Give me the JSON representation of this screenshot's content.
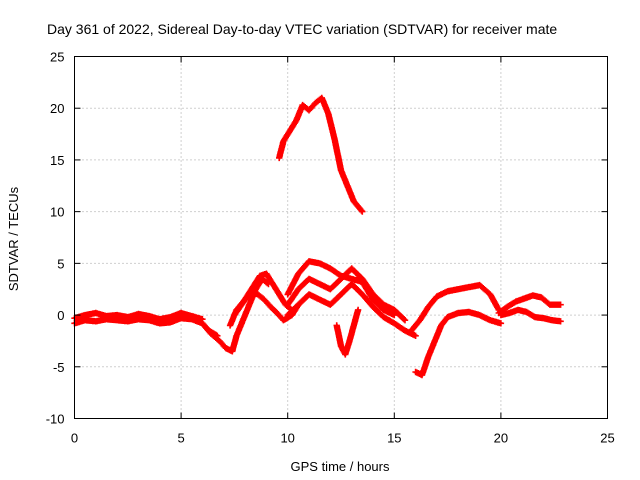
{
  "chart_data": {
    "type": "scatter",
    "title": "Day 361 of 2022, Sidereal Day-to-day VTEC variation (SDTVAR) for receiver mate",
    "xlabel": "GPS time / hours",
    "ylabel": "SDTVAR / TECUs",
    "xlim": [
      0,
      25
    ],
    "ylim": [
      -10,
      25
    ],
    "xticks": [
      0,
      5,
      10,
      15,
      20,
      25
    ],
    "yticks": [
      -10,
      -5,
      0,
      5,
      10,
      15,
      20,
      25
    ],
    "grid": true,
    "marker": "plus",
    "series": [
      {
        "name": "baseline-band",
        "color": "#ff0000",
        "x": [
          0.0,
          0.5,
          1.0,
          1.5,
          2.0,
          2.5,
          3.0,
          3.5,
          4.0,
          4.5,
          5.0,
          5.5,
          6.0,
          6.3,
          6.7
        ],
        "y": [
          -0.8,
          -0.5,
          -0.6,
          -0.4,
          -0.5,
          -0.6,
          -0.4,
          -0.5,
          -0.8,
          -0.7,
          -0.3,
          -0.4,
          -0.8,
          -1.5,
          -2.0
        ]
      },
      {
        "name": "baseline-upper",
        "color": "#ff0000",
        "x": [
          0.0,
          0.5,
          1.0,
          1.5,
          2.0,
          2.5,
          3.0,
          3.5,
          4.0,
          4.5,
          5.0,
          5.5,
          6.0
        ],
        "y": [
          -0.3,
          0.0,
          0.2,
          -0.1,
          0.0,
          -0.2,
          0.1,
          -0.1,
          -0.4,
          -0.2,
          0.2,
          -0.1,
          -0.4
        ]
      },
      {
        "name": "dip-1",
        "color": "#ff0000",
        "x": [
          6.0,
          6.4,
          6.8,
          7.1,
          7.4,
          7.6,
          7.9,
          8.2,
          8.5,
          8.8,
          9.1
        ],
        "y": [
          -0.8,
          -1.8,
          -2.5,
          -3.2,
          -3.5,
          -2.0,
          -0.5,
          1.0,
          2.5,
          3.5,
          3.0
        ]
      },
      {
        "name": "morning-rise-a",
        "color": "#ff0000",
        "x": [
          7.3,
          7.6,
          8.0,
          8.3,
          8.6,
          8.9,
          9.2,
          9.5,
          9.8,
          10.2,
          10.5
        ],
        "y": [
          -1.0,
          0.5,
          1.5,
          2.2,
          2.0,
          1.5,
          0.8,
          0.2,
          -0.5,
          0.0,
          1.0
        ]
      },
      {
        "name": "morning-rise-b",
        "color": "#ff0000",
        "x": [
          7.5,
          7.9,
          8.3,
          8.7,
          9.0,
          9.3,
          9.6,
          9.9,
          10.2
        ],
        "y": [
          0.0,
          1.2,
          2.5,
          3.8,
          4.0,
          3.0,
          2.0,
          1.0,
          0.5
        ]
      },
      {
        "name": "midday-upper",
        "color": "#ff0000",
        "x": [
          10.0,
          10.5,
          11.0,
          11.5,
          12.0,
          12.5,
          13.0,
          13.5,
          14.0,
          14.5,
          15.0
        ],
        "y": [
          2.0,
          4.0,
          5.2,
          5.0,
          4.5,
          3.8,
          3.5,
          3.2,
          1.5,
          0.5,
          0.0
        ]
      },
      {
        "name": "midday-mid",
        "color": "#ff0000",
        "x": [
          10.0,
          10.5,
          11.0,
          11.5,
          12.0,
          12.5,
          13.0,
          13.5,
          14.0,
          14.5,
          15.0,
          15.5
        ],
        "y": [
          1.0,
          2.5,
          3.5,
          3.0,
          2.5,
          3.5,
          4.5,
          3.5,
          2.0,
          1.0,
          0.5,
          -0.5
        ]
      },
      {
        "name": "midday-lower",
        "color": "#ff0000",
        "x": [
          10.0,
          10.5,
          11.0,
          11.5,
          12.0,
          12.5,
          13.0,
          13.5,
          14.0,
          14.5,
          15.0,
          15.5,
          16.0
        ],
        "y": [
          0.0,
          1.0,
          2.0,
          1.5,
          1.0,
          2.0,
          3.0,
          2.0,
          0.8,
          -0.2,
          -0.8,
          -1.5,
          -2.0
        ]
      },
      {
        "name": "sharp-dip-12h",
        "color": "#ff0000",
        "x": [
          12.3,
          12.5,
          12.7,
          12.9,
          13.1,
          13.3
        ],
        "y": [
          -1.0,
          -3.0,
          -3.8,
          -2.5,
          -1.0,
          0.5
        ]
      },
      {
        "name": "peak-arc",
        "color": "#ff0000",
        "x": [
          9.6,
          9.8,
          10.1,
          10.4,
          10.7,
          11.0,
          11.3,
          11.6,
          11.9,
          12.2,
          12.5,
          12.8,
          13.1,
          13.5
        ],
        "y": [
          15.2,
          16.8,
          17.8,
          18.8,
          20.3,
          19.8,
          20.5,
          21.0,
          19.5,
          17.0,
          14.0,
          12.5,
          11.0,
          10.0
        ]
      },
      {
        "name": "afternoon-upper",
        "color": "#ff0000",
        "x": [
          15.8,
          16.2,
          16.6,
          17.0,
          17.5,
          18.0,
          18.5,
          19.0,
          19.5,
          19.9
        ],
        "y": [
          -1.5,
          -0.5,
          0.8,
          1.8,
          2.3,
          2.5,
          2.7,
          2.9,
          2.0,
          0.5
        ]
      },
      {
        "name": "afternoon-deep",
        "color": "#ff0000",
        "x": [
          16.0,
          16.3,
          16.6,
          16.9,
          17.2,
          17.5,
          18.0,
          18.5,
          19.0,
          19.5,
          20.0
        ],
        "y": [
          -5.5,
          -5.8,
          -4.0,
          -2.5,
          -1.0,
          -0.2,
          0.2,
          0.3,
          0.0,
          -0.5,
          -0.8
        ]
      },
      {
        "name": "evening-upper",
        "color": "#ff0000",
        "x": [
          19.9,
          20.3,
          20.7,
          21.1,
          21.5,
          21.9,
          22.3,
          22.8
        ],
        "y": [
          0.2,
          0.8,
          1.3,
          1.6,
          1.9,
          1.7,
          1.0,
          1.0
        ]
      },
      {
        "name": "evening-lower",
        "color": "#ff0000",
        "x": [
          20.0,
          20.4,
          20.8,
          21.2,
          21.6,
          22.0,
          22.4,
          22.8
        ],
        "y": [
          0.0,
          0.2,
          0.5,
          0.3,
          -0.2,
          -0.3,
          -0.5,
          -0.6
        ]
      }
    ]
  }
}
